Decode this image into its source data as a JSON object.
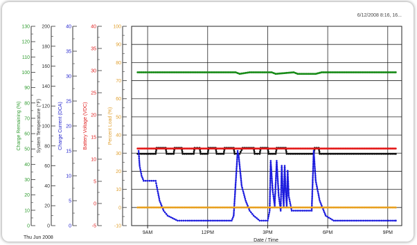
{
  "chart_data": {
    "type": "line",
    "timestamp_label": "6/12/2008 8:16, 16...",
    "date_label": "Thu Jun 2008",
    "xlabel": "Date / Time",
    "x_ticks": [
      {
        "label": "9AM",
        "hour": 9
      },
      {
        "label": "12PM",
        "hour": 12
      },
      {
        "label": "3PM",
        "hour": 15
      },
      {
        "label": "6PM",
        "hour": 18
      },
      {
        "label": "9PM",
        "hour": 21
      }
    ],
    "xlim_hours": [
      8.2,
      21.7
    ],
    "grid": true,
    "axes": [
      {
        "id": "charge",
        "label": "Charge Remaining (%)",
        "color": "#2f9b2f",
        "min": 0,
        "max": 130,
        "step": 10
      },
      {
        "id": "temp",
        "label": "System Temperature (°F)",
        "color": "#333333",
        "min": 0,
        "max": 200,
        "step": 20
      },
      {
        "id": "current",
        "label": "Charge Current (DCA)",
        "color": "#2222cc",
        "min": 0,
        "max": 40,
        "step": 5
      },
      {
        "id": "voltage",
        "label": "Battery Voltage (VDC)",
        "color": "#e02020",
        "min": -5,
        "max": 40,
        "step": 5
      },
      {
        "id": "load",
        "label": "Percent Load (%)",
        "color": "#e0a030",
        "min": -10,
        "max": 100,
        "step": 10
      }
    ],
    "series": [
      {
        "axis": "charge",
        "color": "#1a8c1a",
        "points": [
          [
            8.5,
            100
          ],
          [
            8.8,
            100
          ],
          [
            9.4,
            100
          ],
          [
            13.4,
            100
          ],
          [
            13.6,
            99
          ],
          [
            14.1,
            100
          ],
          [
            15.2,
            100
          ],
          [
            15.4,
            99
          ],
          [
            16.3,
            100
          ],
          [
            16.5,
            99
          ],
          [
            17.4,
            99
          ],
          [
            17.7,
            100
          ],
          [
            21.4,
            100
          ]
        ]
      },
      {
        "axis": "temp",
        "color": "#111111",
        "points": [
          [
            8.5,
            72
          ],
          [
            9.4,
            72
          ],
          [
            9.45,
            78
          ],
          [
            9.9,
            78
          ],
          [
            9.95,
            72
          ],
          [
            10.3,
            72
          ],
          [
            10.35,
            78
          ],
          [
            10.7,
            78
          ],
          [
            10.75,
            72
          ],
          [
            11.3,
            72
          ],
          [
            11.35,
            78
          ],
          [
            11.6,
            78
          ],
          [
            11.65,
            72
          ],
          [
            12.0,
            72
          ],
          [
            12.05,
            78
          ],
          [
            12.4,
            78
          ],
          [
            12.45,
            72
          ],
          [
            12.8,
            72
          ],
          [
            12.85,
            78
          ],
          [
            13.3,
            78
          ],
          [
            13.35,
            72
          ],
          [
            13.6,
            72
          ],
          [
            13.75,
            78
          ],
          [
            14.3,
            78
          ],
          [
            14.35,
            72
          ],
          [
            14.6,
            72
          ],
          [
            14.65,
            78
          ],
          [
            15.0,
            78
          ],
          [
            15.05,
            72
          ],
          [
            15.4,
            72
          ],
          [
            15.45,
            78
          ],
          [
            15.9,
            78
          ],
          [
            15.95,
            72
          ],
          [
            17.3,
            72
          ],
          [
            17.35,
            78
          ],
          [
            17.55,
            78
          ],
          [
            17.6,
            72
          ],
          [
            21.4,
            72
          ]
        ]
      },
      {
        "axis": "voltage",
        "color": "#e41a1a",
        "points": [
          [
            8.5,
            12.4
          ],
          [
            21.4,
            12.4
          ]
        ]
      },
      {
        "axis": "current",
        "color": "#1a1add",
        "points": [
          [
            8.55,
            15
          ],
          [
            8.6,
            12
          ],
          [
            8.7,
            10
          ],
          [
            8.8,
            9
          ],
          [
            9.0,
            9
          ],
          [
            9.4,
            9
          ],
          [
            9.45,
            8
          ],
          [
            9.6,
            5
          ],
          [
            9.8,
            3
          ],
          [
            10.0,
            2
          ],
          [
            10.5,
            1
          ],
          [
            11.0,
            1
          ],
          [
            13.2,
            1
          ],
          [
            13.3,
            2
          ],
          [
            13.5,
            15
          ],
          [
            13.55,
            14
          ],
          [
            13.7,
            8
          ],
          [
            13.9,
            5
          ],
          [
            14.1,
            3
          ],
          [
            14.3,
            2
          ],
          [
            14.6,
            1
          ],
          [
            14.8,
            1
          ],
          [
            15.0,
            1
          ],
          [
            15.1,
            3
          ],
          [
            15.15,
            13
          ],
          [
            15.25,
            7
          ],
          [
            15.35,
            4
          ],
          [
            15.45,
            13
          ],
          [
            15.55,
            6
          ],
          [
            15.65,
            3
          ],
          [
            15.7,
            12
          ],
          [
            15.75,
            7
          ],
          [
            15.8,
            4
          ],
          [
            15.85,
            12
          ],
          [
            15.9,
            7
          ],
          [
            15.95,
            4
          ],
          [
            16.0,
            11
          ],
          [
            16.05,
            6
          ],
          [
            16.2,
            3
          ],
          [
            17.2,
            3
          ],
          [
            17.3,
            15
          ],
          [
            17.4,
            9
          ],
          [
            17.6,
            5
          ],
          [
            17.9,
            2
          ],
          [
            18.3,
            1
          ],
          [
            19.0,
            1
          ],
          [
            21.4,
            1
          ]
        ]
      },
      {
        "axis": "load",
        "color": "#e8a020",
        "points": [
          [
            8.5,
            0
          ],
          [
            21.4,
            0
          ]
        ]
      }
    ]
  }
}
